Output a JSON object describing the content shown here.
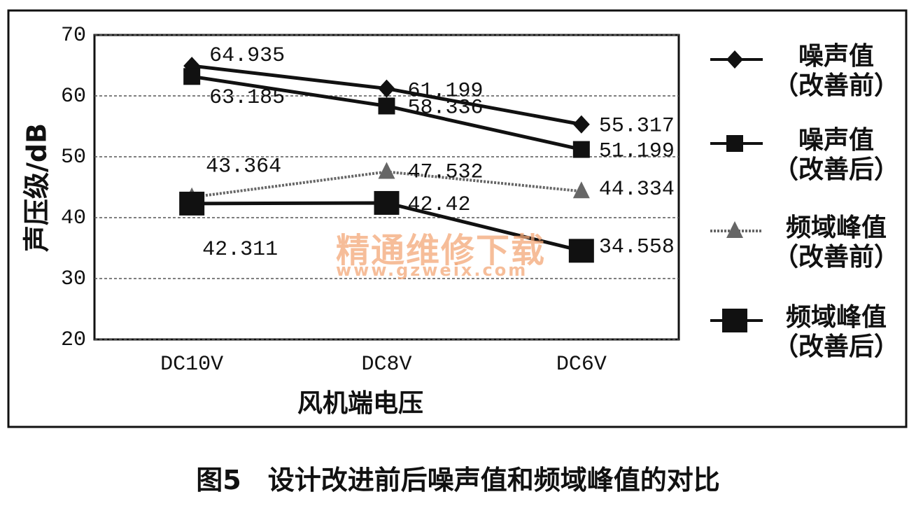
{
  "chart_data": {
    "type": "line",
    "ylabel": "声压级/dB",
    "xlabel": "风机端电压",
    "caption": "图5　设计改进前后噪声值和频域峰值的对比",
    "watermark": "精通维修下载",
    "watermark_url": "www.gzweix.com",
    "categories": [
      "DC10V",
      "DC8V",
      "DC6V"
    ],
    "ylim": [
      20,
      70
    ],
    "yticks": [
      20,
      30,
      40,
      50,
      60,
      70
    ],
    "grid": true,
    "legend": "right",
    "series": [
      {
        "name": "噪声值（改善前）",
        "color": "#111111",
        "marker": "diamond",
        "values": [
          64.935,
          61.199,
          55.317
        ]
      },
      {
        "name": "噪声值（改善后）",
        "color": "#111111",
        "marker": "square",
        "values": [
          63.185,
          58.336,
          51.199
        ]
      },
      {
        "name": "频域峰值（改善前）",
        "color": "#666666",
        "marker": "triangle",
        "values": [
          43.364,
          47.532,
          44.334
        ]
      },
      {
        "name": "频域峰值（改善后）",
        "color": "#111111",
        "marker": "big-square",
        "values": [
          42.311,
          42.42,
          34.558
        ]
      }
    ]
  }
}
